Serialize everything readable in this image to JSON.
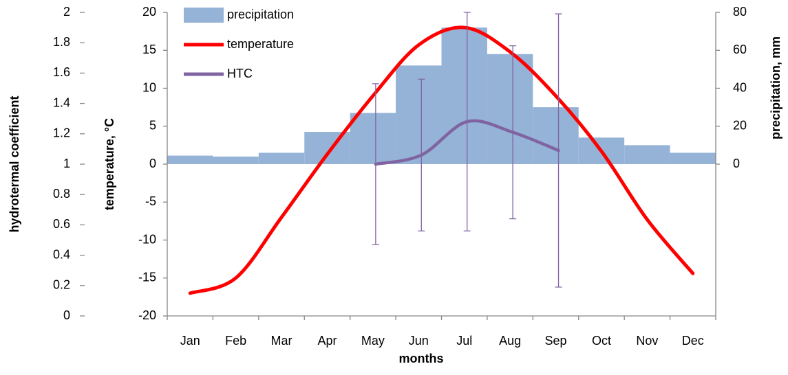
{
  "chart_data": {
    "type": "combo",
    "categories": [
      "Jan",
      "Feb",
      "Mar",
      "Apr",
      "May",
      "Jun",
      "Jul",
      "Aug",
      "Sep",
      "Oct",
      "Nov",
      "Dec"
    ],
    "x_label": "months",
    "y_label": "temperature, °C",
    "y2_label": "precipitation, mm",
    "y3_label": "hydrotermal coefficient",
    "ylim": [
      -20,
      20
    ],
    "yticks": [
      -20,
      -15,
      -10,
      -5,
      0,
      5,
      10,
      15,
      20
    ],
    "y2lim": [
      -80,
      80
    ],
    "y2ticks": [
      0,
      20,
      40,
      60,
      80
    ],
    "y3lim": [
      0,
      2
    ],
    "y3ticks": [
      0,
      0.2,
      0.4,
      0.6,
      0.8,
      1,
      1.2,
      1.4,
      1.6,
      1.8,
      2
    ],
    "series": [
      {
        "name": "precipitation",
        "type": "bar",
        "axis": "y2",
        "color": "#95b3d7",
        "values": [
          4.5,
          4,
          6,
          17,
          27,
          52,
          72,
          58,
          30,
          14,
          10,
          6
        ]
      },
      {
        "name": "temperature",
        "type": "line",
        "axis": "y",
        "color": "#ff0000",
        "values": [
          -17,
          -15,
          -7,
          1.3,
          9,
          15.7,
          18,
          14.8,
          9,
          1.7,
          -7.3,
          -14.4
        ]
      },
      {
        "name": "HTC",
        "type": "line",
        "axis": "y3",
        "color": "#8064a2",
        "values": [
          null,
          null,
          null,
          null,
          1.0,
          1.06,
          1.28,
          1.21,
          1.09,
          null,
          null,
          null
        ],
        "errors": [
          null,
          null,
          null,
          null,
          0.53,
          0.5,
          0.72,
          0.57,
          0.9,
          null,
          null,
          null
        ]
      }
    ]
  }
}
